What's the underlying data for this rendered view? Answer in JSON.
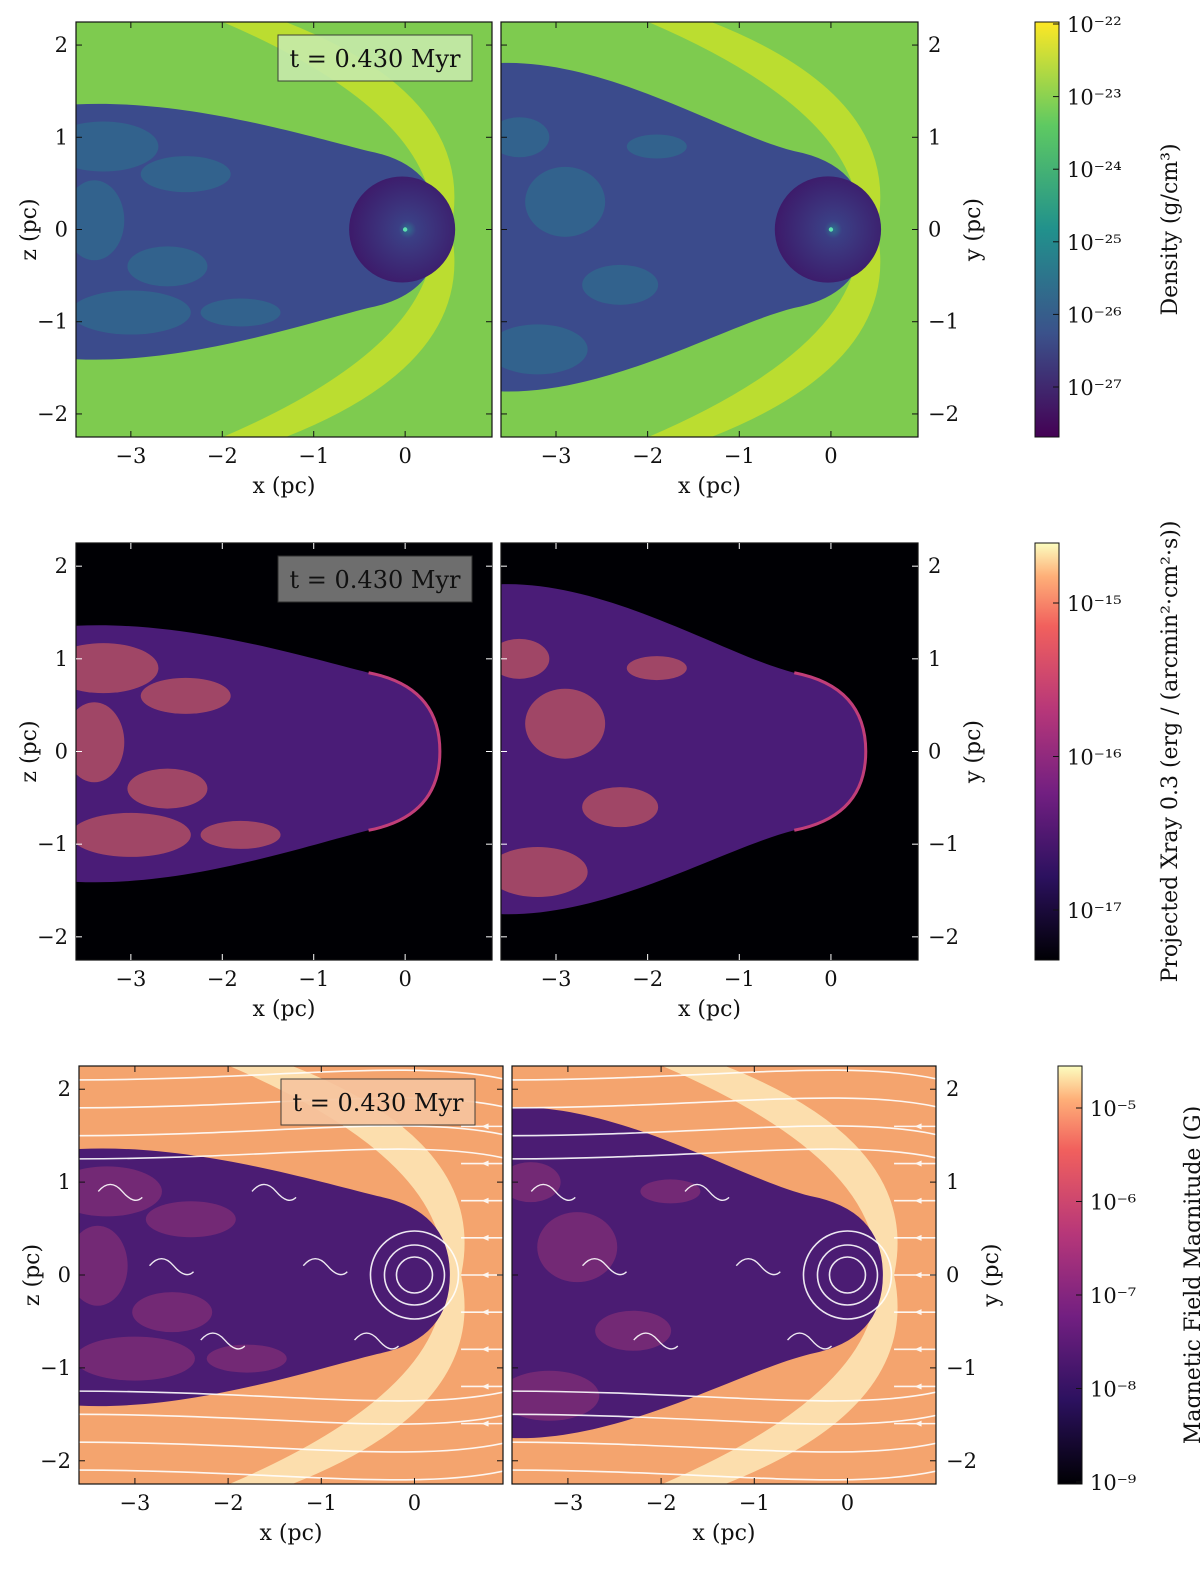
{
  "figure": {
    "time_label": "t = 0.430 Myr",
    "rows": [
      {
        "quantity": "Density",
        "colorbar_label": "Density",
        "colorbar_units": "(g/cm³)",
        "colormap": "viridis",
        "colorbar_ticks": [
          "10⁻²²",
          "10⁻²³",
          "10⁻²⁴",
          "10⁻²⁵",
          "10⁻²⁶",
          "10⁻²⁷"
        ],
        "background_color": "#7ecb4f",
        "shell_color": "#c2df2c",
        "cavity_color": "#3b4b8c",
        "tail_color": "#277f8e",
        "left_panel": {
          "xlabel": "x (pc)",
          "ylabel": "z (pc)"
        },
        "right_panel": {
          "xlabel": "x (pc)",
          "ylabel": "y (pc)"
        }
      },
      {
        "quantity": "Projected Xray 0.3",
        "colorbar_label": "Projected Xray 0.3",
        "colorbar_units": "(erg / (arcmin²·cm²·s))",
        "colormap": "magma",
        "colorbar_ticks": [
          "10⁻¹⁵",
          "10⁻¹⁶",
          "10⁻¹⁷"
        ],
        "background_color": "#000004",
        "shell_color": "#c13e79",
        "cavity_color": "#4a1c77",
        "tail_color": "#e8695a",
        "left_panel": {
          "xlabel": "x (pc)",
          "ylabel": "z (pc)"
        },
        "right_panel": {
          "xlabel": "x (pc)",
          "ylabel": "y (pc)"
        }
      },
      {
        "quantity": "Magnetic Field Magnitude",
        "colorbar_label": "Magnetic Field Magnitude",
        "colorbar_units": "(G)",
        "colormap": "magma",
        "colorbar_ticks": [
          "10⁻⁵",
          "10⁻⁶",
          "10⁻⁷",
          "10⁻⁸",
          "10⁻⁹"
        ],
        "background_color": "#f4a46e",
        "shell_color": "#fde4b4",
        "cavity_color": "#4b1c73",
        "tail_color": "#a43a78",
        "streamlines": true,
        "left_panel": {
          "xlabel": "x (pc)",
          "ylabel": "z (pc)"
        },
        "right_panel": {
          "xlabel": "x (pc)",
          "ylabel": "y (pc)"
        }
      }
    ]
  },
  "chart_data": {
    "type": "heatmap",
    "x_ticks": [
      -3,
      -2,
      -1,
      0
    ],
    "y_ticks": [
      -2,
      -1,
      0,
      1,
      2
    ],
    "xlim": [
      -3.6,
      0.95
    ],
    "ylim": [
      -2.25,
      2.25
    ],
    "grid": false,
    "density_range": [
      3e-28,
      1e-22
    ],
    "xray_range": [
      3e-18,
      2.5e-15
    ],
    "bfield_range": [
      1e-09,
      3e-05
    ],
    "bow_shock": {
      "apex_x": 0.5,
      "cavity_front_x": 0.38,
      "star_x": 0,
      "star_y": 0,
      "bubble_radius": 0.58
    }
  }
}
